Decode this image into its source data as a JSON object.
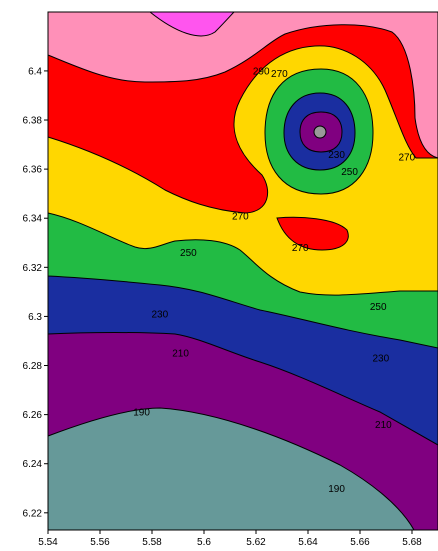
{
  "chart_data": {
    "type": "contour",
    "title": "",
    "xlabel": "",
    "ylabel": "",
    "xlim": [
      5.54,
      5.69
    ],
    "ylim": [
      6.213,
      6.424
    ],
    "x_ticks": [
      "5.54",
      "5.56",
      "5.58",
      "5.6",
      "5.62",
      "5.64",
      "5.66",
      "5.68"
    ],
    "y_ticks": [
      "6.22",
      "6.24",
      "6.26",
      "6.28",
      "6.3",
      "6.32",
      "6.34",
      "6.36",
      "6.38",
      "6.4"
    ],
    "x_tick_values": [
      5.54,
      5.56,
      5.58,
      5.6,
      5.62,
      5.64,
      5.66,
      5.68
    ],
    "y_tick_values": [
      6.22,
      6.24,
      6.26,
      6.28,
      6.3,
      6.32,
      6.34,
      6.36,
      6.38,
      6.4
    ],
    "levels": [
      190,
      210,
      230,
      250,
      270,
      290
    ],
    "fill_colors": [
      "#669999",
      "#800080",
      "#1a2ea0",
      "#22bb44",
      "#ffd700",
      "#ff0000",
      "#ff90b8",
      "#ff55ee",
      "#800080",
      "#999999"
    ],
    "contour_labels": [
      {
        "text": "290",
        "x": 5.622,
        "y": 6.4
      },
      {
        "text": "270",
        "x": 5.629,
        "y": 6.399
      },
      {
        "text": "230",
        "x": 5.651,
        "y": 6.366
      },
      {
        "text": "250",
        "x": 5.656,
        "y": 6.359
      },
      {
        "text": "270",
        "x": 5.678,
        "y": 6.365
      },
      {
        "text": "270",
        "x": 5.614,
        "y": 6.341
      },
      {
        "text": "270",
        "x": 5.637,
        "y": 6.328
      },
      {
        "text": "250",
        "x": 5.594,
        "y": 6.326
      },
      {
        "text": "250",
        "x": 5.667,
        "y": 6.304
      },
      {
        "text": "230",
        "x": 5.583,
        "y": 6.301
      },
      {
        "text": "230",
        "x": 5.668,
        "y": 6.283
      },
      {
        "text": "210",
        "x": 5.591,
        "y": 6.285
      },
      {
        "text": "210",
        "x": 5.669,
        "y": 6.256
      },
      {
        "text": "190",
        "x": 5.576,
        "y": 6.261
      },
      {
        "text": "190",
        "x": 5.651,
        "y": 6.23
      }
    ]
  }
}
